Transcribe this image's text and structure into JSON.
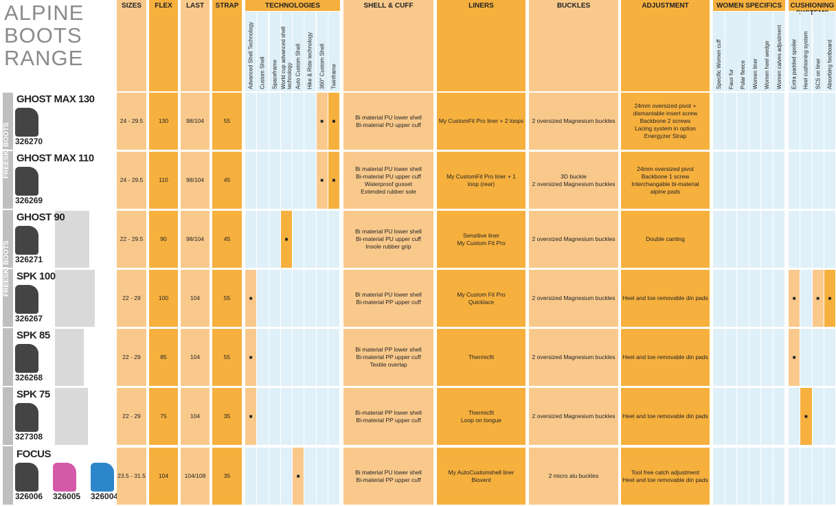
{
  "title": [
    "ALPINE",
    "BOOTS",
    "RANGE"
  ],
  "columns": [
    "SIZES",
    "FLEX",
    "LAST",
    "STRAP",
    "TECHNOLOGIES",
    "SHELL & CUFF",
    "LINERS",
    "BUCKLES",
    "ADJUSTMENT",
    "WOMEN SPECIFICS",
    "CUSHIONING SYSTEMS"
  ],
  "technologies": [
    "Advanced Shell Technology",
    "Custom Shell",
    "Spaceframe",
    "World cup advanced shell technology",
    "Auto Custom Shell",
    "Hike & Ride technology",
    "360° Custom Shell",
    "Twinframe"
  ],
  "women_specifics": [
    "Specific Women cuff",
    "Faux fur",
    "Polar fleece",
    "Women liner",
    "Women heel wedge",
    "Women calves adjustment"
  ],
  "cushioning_systems": [
    "Extra padded spoiler",
    "Heel cushioning system",
    "SCS on liner",
    "Absorbing footboard"
  ],
  "groups": [
    "FREESKI BOOTS",
    "FREESKI BOOTS"
  ],
  "marker": "■",
  "rows": [
    {
      "name": "GHOST MAX 130",
      "codes": [
        "326270"
      ],
      "sizes": "24 - 29.5",
      "flex": 130,
      "last": "98/104",
      "strap": 55,
      "shell": [
        "Bi material PU lower shell",
        "Bi-material PU upper cuff"
      ],
      "liners": [
        "My CustomFit Pro liner + 2 loops"
      ],
      "buckles": [
        "2 oversized Magnesium buckles"
      ],
      "adjustment": [
        "24mm oversized pivot +",
        "dismantable insert screw",
        "Backbone 2 screws",
        "Lacing system in option",
        "Energyzer Strap"
      ],
      "tech": [
        6,
        7
      ],
      "cushioning": []
    },
    {
      "name": "GHOST MAX 110",
      "codes": [
        "326269"
      ],
      "sizes": "24 - 29.5",
      "flex": 110,
      "last": "98/104",
      "strap": 45,
      "shell": [
        "Bi material PU lower shell",
        "Bi-material PU upper cuff",
        "Waterproof gusset",
        "Extended rubber sole"
      ],
      "liners": [
        "My CustomFit Pro liner + 1",
        "loop (rear)"
      ],
      "buckles": [
        "3D buckle",
        "2 oversized Magnesium buckles"
      ],
      "adjustment": [
        "24mm oversized pivot",
        "Backbone 1 screw",
        "Interchangable bi-material",
        "alpine pads"
      ],
      "tech": [
        6,
        7
      ],
      "cushioning": []
    },
    {
      "name": "GHOST 90",
      "codes": [
        "326271"
      ],
      "sizes": "22 - 29.5",
      "flex": 90,
      "last": "98/104",
      "strap": 45,
      "shell": [
        "Bi material PU lower shell",
        "Bi-material PU upper cuff",
        "Insole rubber grip"
      ],
      "liners": [
        "Sensitive liner",
        "My Custom Fit Pro"
      ],
      "buckles": [
        "2 oversized Magnesium buckles"
      ],
      "adjustment": [
        "Double canting"
      ],
      "tech": [
        3
      ],
      "cushioning": []
    },
    {
      "name": "SPK 100",
      "codes": [
        "326267"
      ],
      "sizes": "22 - 29",
      "flex": 100,
      "last": "104",
      "strap": 55,
      "shell": [
        "Bi material PU lower shell",
        "Bi-material PP upper cuff"
      ],
      "liners": [
        "My Custom Fit Pro",
        "Quicklace"
      ],
      "buckles": [
        "2 oversized Magnesium buckles"
      ],
      "adjustment": [
        "Heel and toe removable din pads"
      ],
      "tech": [
        0
      ],
      "cushioning": [
        0,
        2,
        3
      ]
    },
    {
      "name": "SPK 85",
      "codes": [
        "326268"
      ],
      "sizes": "22 - 29",
      "flex": 85,
      "last": "104",
      "strap": 55,
      "shell": [
        "Bi material PP lower shell",
        "Bi-material PP upper cuff",
        "Textile overlap"
      ],
      "liners": [
        "Thermicfit"
      ],
      "buckles": [
        "2 oversized Magnesium buckles"
      ],
      "adjustment": [
        "Heel and toe removable din pads"
      ],
      "tech": [
        0
      ],
      "cushioning": [
        0
      ]
    },
    {
      "name": "SPK 75",
      "codes": [
        "327308"
      ],
      "sizes": "22 - 29",
      "flex": 75,
      "last": "104",
      "strap": 35,
      "shell": [
        "Bi-material PP lower shell",
        "Bi-material PP upper cuff"
      ],
      "liners": [
        "Thermicfit",
        "Loop on tongue"
      ],
      "buckles": [
        "2 oversized Magnesium buckles"
      ],
      "adjustment": [
        "Heel and toe removable din pads"
      ],
      "tech": [
        0
      ],
      "cushioning": [
        1
      ]
    },
    {
      "name": "FOCUS",
      "codes": [
        "326006",
        "326005",
        "326004"
      ],
      "sizes": "23.5 - 31.5",
      "flex": 104,
      "last": "104/108",
      "strap": 35,
      "shell": [
        "Bi material PU lower shell",
        "Bi-material PP upper cuff"
      ],
      "liners": [
        "My AutoCustomshell liner",
        "Biovent"
      ],
      "buckles": [
        "2 micro alu buckles"
      ],
      "adjustment": [
        "Tool free catch adjustment",
        "Heel and toe removable din pads"
      ],
      "tech": [
        4
      ],
      "cushioning": []
    }
  ]
}
